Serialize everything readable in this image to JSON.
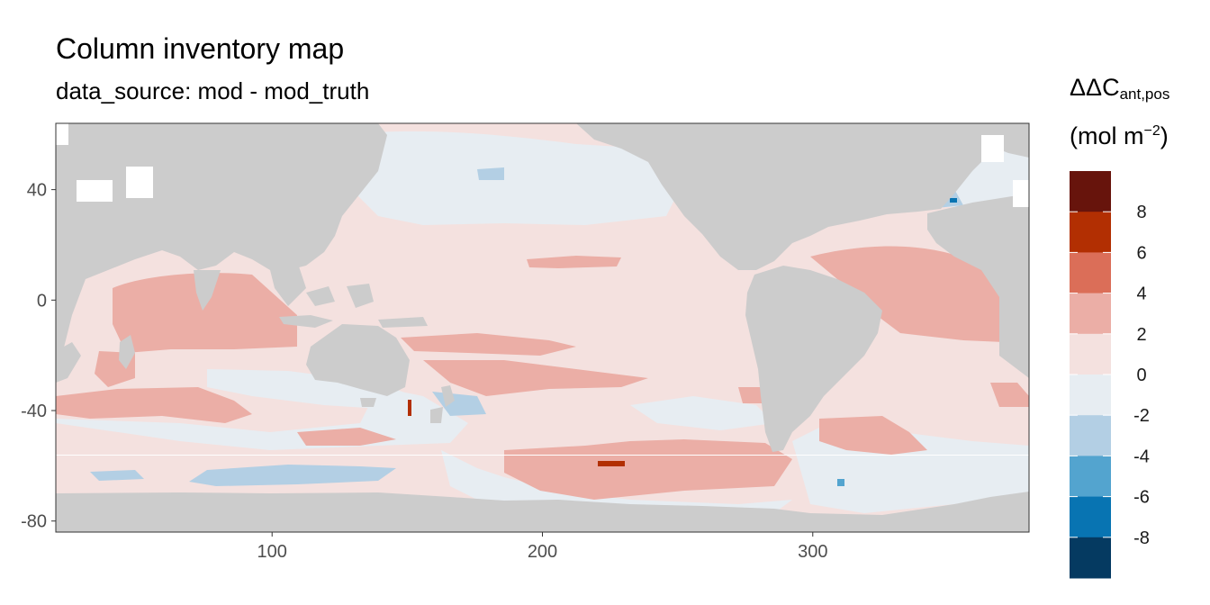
{
  "title": "Column inventory map",
  "subtitle": "data_source: mod - mod_truth",
  "legend": {
    "title_main": "ΔΔC",
    "title_sub": "ant,pos",
    "units_prefix": "(mol m",
    "units_sup": "−2",
    "units_suffix": ")",
    "bins": [
      {
        "label": "",
        "color": "#67140c"
      },
      {
        "label": "8",
        "color": "#b22f02"
      },
      {
        "label": "6",
        "color": "#db6e58"
      },
      {
        "label": "4",
        "color": "#ebaea6"
      },
      {
        "label": "2",
        "color": "#f4e1df"
      },
      {
        "label": "0",
        "color": "#e7edf2"
      },
      {
        "label": "-2",
        "color": "#b3cfe4"
      },
      {
        "label": "-4",
        "color": "#53a4cf"
      },
      {
        "label": "-6",
        "color": "#0874b2"
      },
      {
        "label": "-8",
        "color": "#053a61"
      }
    ]
  },
  "chart_data": {
    "type": "heatmap",
    "title": "Column inventory map",
    "subtitle": "data_source: mod - mod_truth",
    "x_ticks": [
      100,
      200,
      300
    ],
    "y_ticks": [
      40,
      0,
      -40,
      -80
    ],
    "xlim": [
      20,
      380
    ],
    "ylim": [
      -84,
      64
    ],
    "land_color": "#cccccc",
    "colors": {
      "pos_0_2": "#f4e1df",
      "pos_2_4": "#ebaea6",
      "pos_6_8": "#b22f02",
      "neg_0_2": "#e7edf2",
      "neg_2_4": "#b3cfe4",
      "neg_4_6": "#53a4cf",
      "neg_6_8": "#0874b2"
    }
  }
}
